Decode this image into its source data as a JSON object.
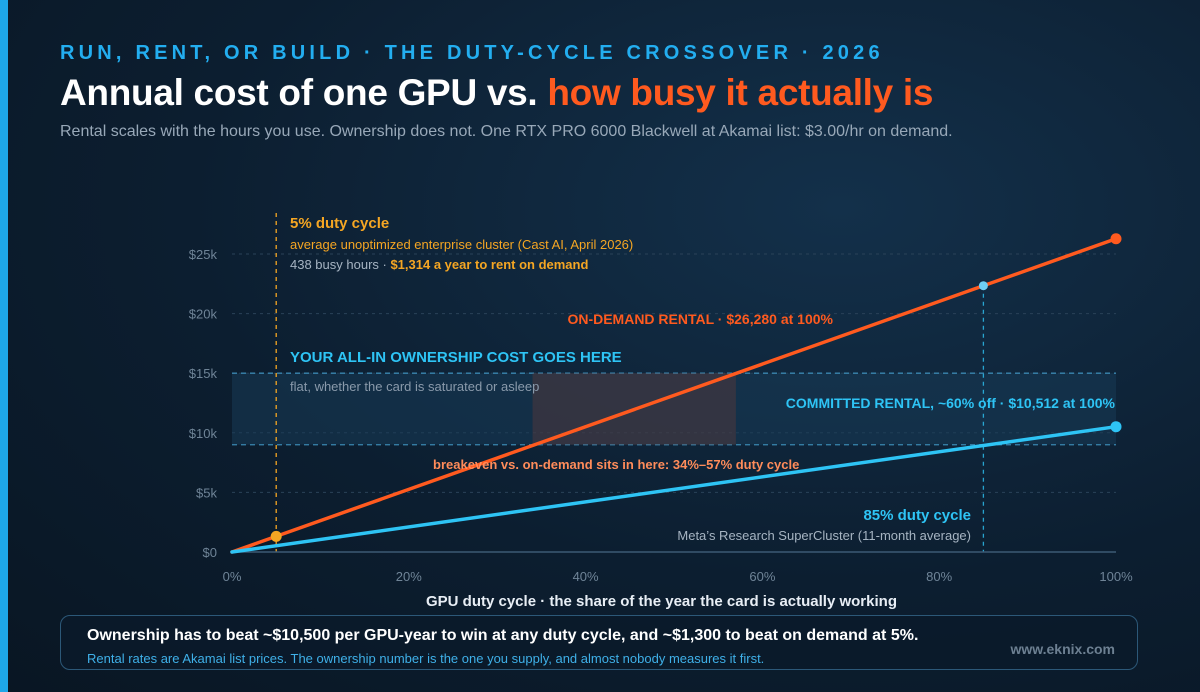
{
  "header": {
    "eyebrow": "RUN, RENT, OR BUILD · THE DUTY-CYCLE CROSSOVER · 2026",
    "title_main": "Annual cost of one GPU vs. ",
    "title_highlight": "how busy it actually is",
    "subtitle": "Rental scales with the hours you use. Ownership does not. One RTX PRO 6000 Blackwell at Akamai list: $3.00/hr on demand."
  },
  "chart_data": {
    "type": "line",
    "xlabel": "GPU duty cycle · the share of the year the card is actually working",
    "ylabel": "",
    "xlim": [
      0,
      100
    ],
    "ylim": [
      0,
      25000
    ],
    "x_ticks": [
      0,
      20,
      40,
      60,
      80,
      100
    ],
    "x_tick_labels": [
      "0%",
      "20%",
      "40%",
      "60%",
      "80%",
      "100%"
    ],
    "y_ticks": [
      0,
      5000,
      10000,
      15000,
      20000,
      25000
    ],
    "y_tick_labels": [
      "$0",
      "$5k",
      "$10k",
      "$15k",
      "$20k",
      "$25k"
    ],
    "grid": true,
    "series": [
      {
        "name": "ON-DEMAND RENTAL · $26,280 at 100%",
        "color": "#ff5a1f",
        "x": [
          0,
          100
        ],
        "y": [
          0,
          26280
        ]
      },
      {
        "name": "COMMITTED RENTAL, ~60% off · $10,512 at 100%",
        "color": "#2ec4f5",
        "x": [
          0,
          100
        ],
        "y": [
          0,
          10512
        ]
      }
    ],
    "ownership_band": {
      "y_range": [
        9000,
        15000
      ],
      "title": "YOUR ALL-IN OWNERSHIP COST GOES HERE",
      "note": "flat, whether the card is saturated or asleep"
    },
    "breakeven_band": {
      "x_range": [
        34,
        57
      ],
      "label": "breakeven vs. on-demand sits in here: 34%–57% duty cycle"
    },
    "annotations": [
      {
        "id": "duty5",
        "x": 5,
        "y": 1314,
        "color": "#f5a623",
        "title": "5% duty cycle",
        "line1": "average unoptimized enterprise cluster (Cast AI, April 2026)",
        "line2_prefix": "438 busy hours · ",
        "line2_bold": "$1,314 a year to rent on demand"
      },
      {
        "id": "duty85",
        "x": 85,
        "y": 22338,
        "color": "#2ec4f5",
        "title": "85% duty cycle",
        "line1": "Meta’s Research SuperCluster (11-month average)"
      }
    ]
  },
  "footer": {
    "main": "Ownership has to beat ~$10,500 per GPU-year to win at any duty cycle, and ~$1,300 to beat on demand at 5%.",
    "sub": "Rental rates are Akamai list prices. The ownership number is the one you supply, and almost nobody measures it first.",
    "brand": "www.eknix.com"
  },
  "colors": {
    "accent": "#1ea7e8",
    "on_demand": "#ff5a1f",
    "committed": "#2ec4f5",
    "duty5": "#f5a623"
  }
}
